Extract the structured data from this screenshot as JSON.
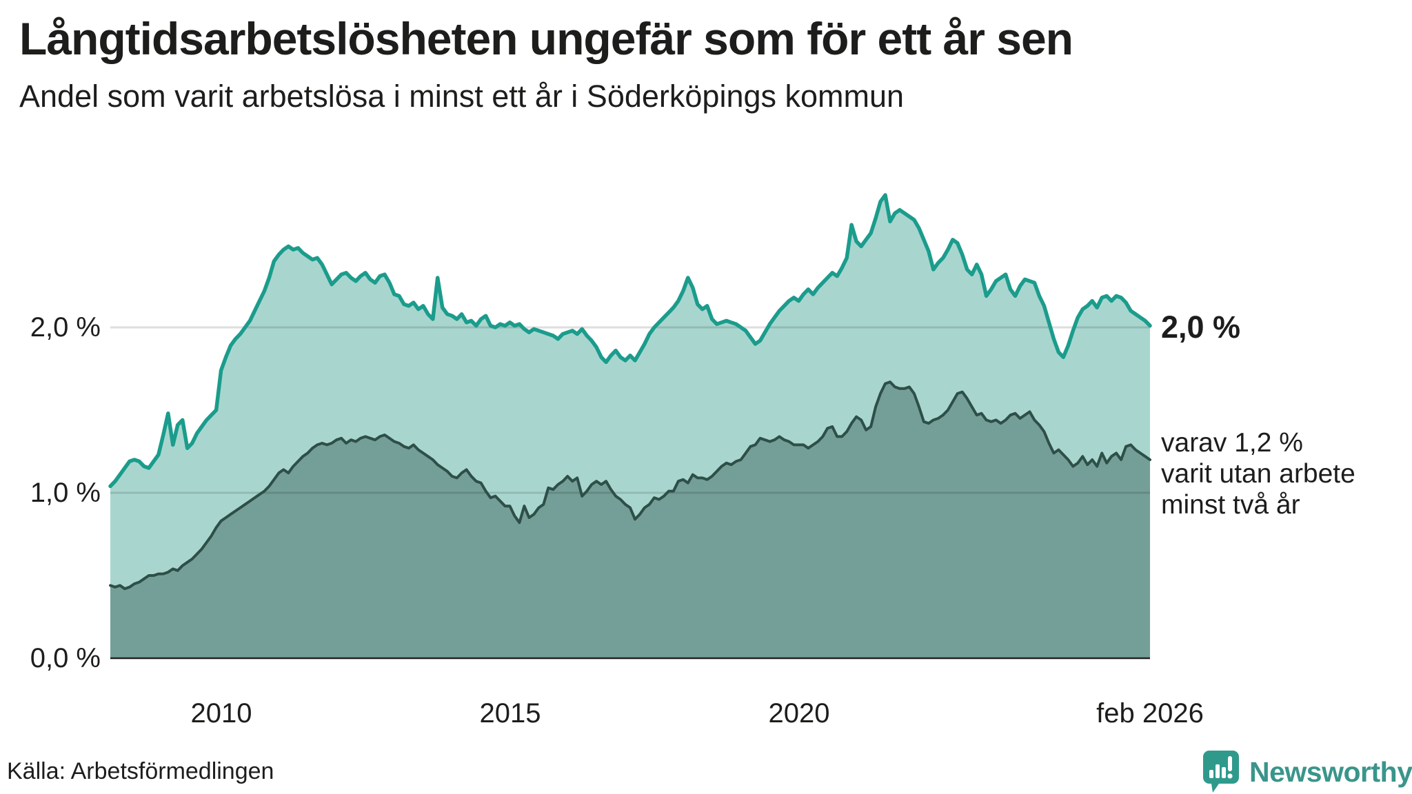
{
  "header": {
    "title": "Långtidsarbetslösheten ungefär som för ett år sen",
    "subtitle": "Andel som varit arbetslösa i minst ett år i Söderköpings kommun"
  },
  "chart_data": {
    "type": "area",
    "title": "Långtidsarbetslösheten ungefär som för ett år sen",
    "subtitle": "Andel som varit arbetslösa i minst ett år i Söderköpings kommun",
    "unit": "%",
    "x_start": 2008.083,
    "x_end": 2026.083,
    "ylim": [
      0,
      3.3
    ],
    "grid": "horizontal",
    "x_ticks": [
      {
        "value": 2010,
        "label": "2010"
      },
      {
        "value": 2015,
        "label": "2015"
      },
      {
        "value": 2020,
        "label": "2020"
      },
      {
        "value": 2026.083,
        "label": "feb 2026"
      }
    ],
    "y_ticks": [
      {
        "value": 0,
        "label": "0,0 %"
      },
      {
        "value": 1,
        "label": "1,0 %"
      },
      {
        "value": 2,
        "label": "2,0 %"
      }
    ],
    "colors": {
      "series1_line": "#1b9c8c",
      "series1_fill": "#a8d6cf",
      "series2_line": "#2e4f48",
      "series2_fill": "#749f98",
      "gridline_overlay": "rgba(0,0,0,0.13)",
      "axis_line": "#222222"
    },
    "series": [
      {
        "name": "Andel arbetslösa minst ett år",
        "end_value_label": "2,0 %",
        "values": [
          1.04,
          1.07,
          1.11,
          1.15,
          1.19,
          1.2,
          1.19,
          1.16,
          1.15,
          1.19,
          1.23,
          1.35,
          1.48,
          1.29,
          1.41,
          1.44,
          1.27,
          1.3,
          1.36,
          1.4,
          1.44,
          1.47,
          1.5,
          1.74,
          1.82,
          1.89,
          1.93,
          1.96,
          2.0,
          2.04,
          2.1,
          2.16,
          2.22,
          2.3,
          2.4,
          2.44,
          2.47,
          2.49,
          2.47,
          2.48,
          2.45,
          2.43,
          2.41,
          2.42,
          2.38,
          2.32,
          2.26,
          2.29,
          2.32,
          2.33,
          2.3,
          2.28,
          2.31,
          2.33,
          2.29,
          2.27,
          2.31,
          2.32,
          2.27,
          2.2,
          2.19,
          2.14,
          2.13,
          2.15,
          2.11,
          2.13,
          2.08,
          2.05,
          2.3,
          2.12,
          2.08,
          2.07,
          2.05,
          2.08,
          2.03,
          2.04,
          2.01,
          2.05,
          2.07,
          2.01,
          2.0,
          2.02,
          2.01,
          2.03,
          2.01,
          2.02,
          1.99,
          1.97,
          1.99,
          1.98,
          1.97,
          1.96,
          1.95,
          1.93,
          1.96,
          1.97,
          1.98,
          1.96,
          1.99,
          1.95,
          1.92,
          1.88,
          1.82,
          1.79,
          1.83,
          1.86,
          1.82,
          1.8,
          1.83,
          1.8,
          1.85,
          1.9,
          1.96,
          2.0,
          2.03,
          2.06,
          2.09,
          2.12,
          2.16,
          2.22,
          2.3,
          2.24,
          2.14,
          2.11,
          2.13,
          2.05,
          2.02,
          2.03,
          2.04,
          2.03,
          2.02,
          2.0,
          1.98,
          1.94,
          1.9,
          1.92,
          1.97,
          2.02,
          2.06,
          2.1,
          2.13,
          2.16,
          2.18,
          2.16,
          2.2,
          2.23,
          2.2,
          2.24,
          2.27,
          2.3,
          2.33,
          2.31,
          2.36,
          2.42,
          2.62,
          2.52,
          2.49,
          2.53,
          2.57,
          2.66,
          2.76,
          2.8,
          2.64,
          2.69,
          2.71,
          2.69,
          2.67,
          2.65,
          2.6,
          2.53,
          2.46,
          2.35,
          2.39,
          2.42,
          2.47,
          2.53,
          2.51,
          2.44,
          2.35,
          2.32,
          2.38,
          2.32,
          2.19,
          2.23,
          2.28,
          2.3,
          2.32,
          2.23,
          2.19,
          2.25,
          2.29,
          2.28,
          2.27,
          2.19,
          2.13,
          2.03,
          1.93,
          1.85,
          1.82,
          1.89,
          1.98,
          2.06,
          2.11,
          2.13,
          2.16,
          2.12,
          2.18,
          2.19,
          2.16,
          2.19,
          2.18,
          2.15,
          2.1,
          2.08,
          2.06,
          2.04,
          2.01
        ]
      },
      {
        "name": "varav utan arbete minst två år",
        "end_value_label": "1,2 %",
        "values": [
          0.44,
          0.43,
          0.44,
          0.42,
          0.43,
          0.45,
          0.46,
          0.48,
          0.5,
          0.5,
          0.51,
          0.51,
          0.52,
          0.54,
          0.53,
          0.56,
          0.58,
          0.6,
          0.63,
          0.66,
          0.7,
          0.74,
          0.79,
          0.83,
          0.85,
          0.87,
          0.89,
          0.91,
          0.93,
          0.95,
          0.97,
          0.99,
          1.01,
          1.04,
          1.08,
          1.12,
          1.14,
          1.12,
          1.16,
          1.19,
          1.22,
          1.24,
          1.27,
          1.29,
          1.3,
          1.29,
          1.3,
          1.32,
          1.33,
          1.3,
          1.32,
          1.31,
          1.33,
          1.34,
          1.33,
          1.32,
          1.34,
          1.35,
          1.33,
          1.31,
          1.3,
          1.28,
          1.27,
          1.29,
          1.26,
          1.24,
          1.22,
          1.2,
          1.17,
          1.15,
          1.13,
          1.1,
          1.09,
          1.12,
          1.14,
          1.1,
          1.07,
          1.06,
          1.01,
          0.97,
          0.98,
          0.95,
          0.92,
          0.92,
          0.86,
          0.82,
          0.92,
          0.85,
          0.87,
          0.91,
          0.93,
          1.03,
          1.02,
          1.05,
          1.07,
          1.1,
          1.07,
          1.09,
          0.98,
          1.01,
          1.05,
          1.07,
          1.05,
          1.07,
          1.02,
          0.98,
          0.96,
          0.93,
          0.91,
          0.84,
          0.87,
          0.91,
          0.93,
          0.97,
          0.96,
          0.98,
          1.01,
          1.01,
          1.07,
          1.08,
          1.06,
          1.11,
          1.09,
          1.09,
          1.08,
          1.1,
          1.13,
          1.16,
          1.18,
          1.17,
          1.19,
          1.2,
          1.24,
          1.28,
          1.29,
          1.33,
          1.32,
          1.31,
          1.32,
          1.34,
          1.32,
          1.31,
          1.29,
          1.29,
          1.29,
          1.27,
          1.29,
          1.31,
          1.34,
          1.39,
          1.4,
          1.34,
          1.34,
          1.37,
          1.42,
          1.46,
          1.44,
          1.38,
          1.4,
          1.52,
          1.6,
          1.66,
          1.67,
          1.64,
          1.63,
          1.63,
          1.64,
          1.6,
          1.52,
          1.43,
          1.42,
          1.44,
          1.45,
          1.47,
          1.5,
          1.55,
          1.6,
          1.61,
          1.57,
          1.52,
          1.47,
          1.48,
          1.44,
          1.43,
          1.44,
          1.42,
          1.44,
          1.47,
          1.48,
          1.45,
          1.47,
          1.49,
          1.44,
          1.41,
          1.37,
          1.3,
          1.24,
          1.26,
          1.23,
          1.2,
          1.16,
          1.18,
          1.22,
          1.17,
          1.2,
          1.16,
          1.24,
          1.18,
          1.22,
          1.24,
          1.2,
          1.28,
          1.29,
          1.26,
          1.24,
          1.22,
          1.2
        ]
      }
    ],
    "annotations": {
      "end_label_primary": "2,0 %",
      "end_note_line1": "varav 1,2 %",
      "end_note_line2": "varit utan arbete",
      "end_note_line3": "minst två år"
    }
  },
  "footer": {
    "source": "Källa: Arbetsförmedlingen",
    "brand": "Newsworthy"
  }
}
